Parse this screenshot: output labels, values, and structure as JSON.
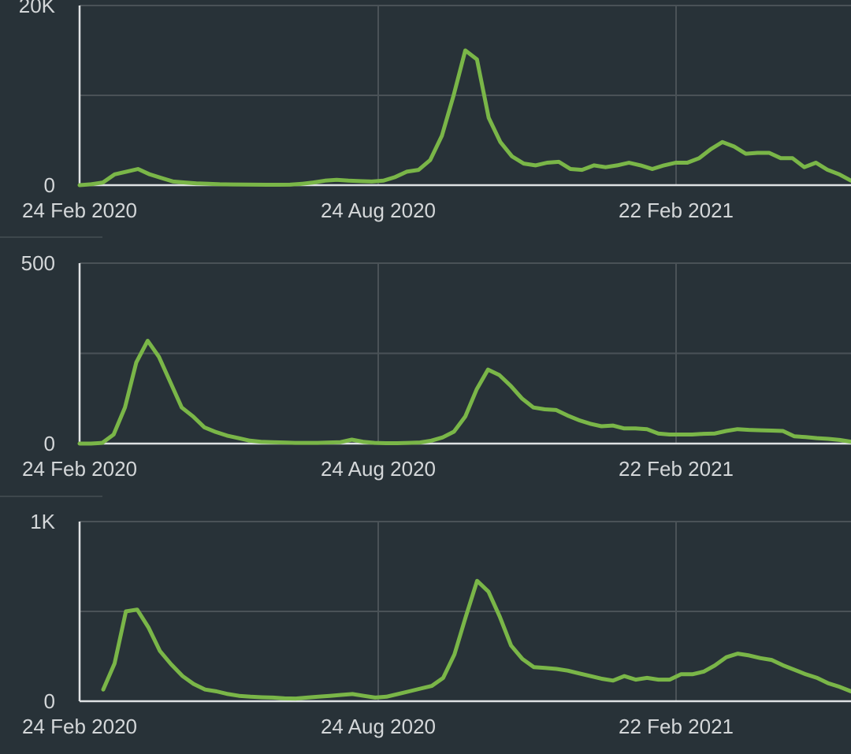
{
  "colors": {
    "background": "#283238",
    "line": "#7ab648",
    "grid": "#4a5257",
    "axis": "#dfe2e4",
    "text": "#d4d7d9"
  },
  "x_tick_labels": [
    "24 Feb 2020",
    "24 Aug 2020",
    "22 Feb 2021"
  ],
  "chart_data": [
    {
      "type": "line",
      "x_axis": "weekly, 24 Feb 2020 – late May 2021",
      "ylim": [
        0,
        20000
      ],
      "y_ticks": [
        {
          "value": 0,
          "label": "0"
        },
        {
          "value": 20000,
          "label": "20K"
        }
      ],
      "x_ticks": [
        "24 Feb 2020",
        "24 Aug 2020",
        "22 Feb 2021"
      ],
      "grid": true,
      "series": [
        {
          "values": [
            0,
            100,
            300,
            1200,
            1500,
            1800,
            1200,
            800,
            400,
            300,
            200,
            150,
            100,
            80,
            60,
            50,
            40,
            40,
            50,
            150,
            300,
            500,
            600,
            500,
            450,
            400,
            500,
            900,
            1500,
            1700,
            2800,
            5500,
            10000,
            15000,
            14000,
            7500,
            4800,
            3200,
            2400,
            2200,
            2500,
            2600,
            1800,
            1700,
            2200,
            2000,
            2200,
            2500,
            2200,
            1800,
            2200,
            2500,
            2500,
            3000,
            4000,
            4800,
            4300,
            3500,
            3600,
            3600,
            3000,
            3000,
            2000,
            2500,
            1700,
            1200,
            500
          ]
        }
      ]
    },
    {
      "type": "line",
      "x_axis": "weekly, 24 Feb 2020 – late May 2021",
      "ylim": [
        0,
        500
      ],
      "y_ticks": [
        {
          "value": 0,
          "label": "0"
        },
        {
          "value": 500,
          "label": "500"
        }
      ],
      "x_ticks": [
        "24 Feb 2020",
        "24 Aug 2020",
        "22 Feb 2021"
      ],
      "grid": true,
      "series": [
        {
          "values": [
            0,
            0,
            2,
            25,
            100,
            225,
            285,
            240,
            170,
            100,
            75,
            45,
            32,
            22,
            15,
            8,
            5,
            4,
            3,
            2,
            2,
            2,
            3,
            4,
            11,
            5,
            2,
            1,
            1,
            2,
            3,
            8,
            17,
            33,
            75,
            150,
            205,
            190,
            160,
            125,
            100,
            95,
            93,
            78,
            65,
            55,
            48,
            50,
            42,
            42,
            40,
            28,
            25,
            25,
            25,
            27,
            28,
            35,
            40,
            38,
            37,
            36,
            35,
            20,
            18,
            15,
            13,
            10,
            5
          ]
        }
      ]
    },
    {
      "type": "line",
      "x_axis": "weekly, 24 Feb 2020 – late May 2021",
      "ylim": [
        0,
        1000
      ],
      "y_ticks": [
        {
          "value": 0,
          "label": "0"
        },
        {
          "value": 1000,
          "label": "1K"
        }
      ],
      "x_ticks": [
        "24 Feb 2020",
        "24 Aug 2020",
        "22 Feb 2021"
      ],
      "grid": true,
      "series": [
        {
          "values": [
            65,
            210,
            500,
            510,
            410,
            280,
            205,
            140,
            95,
            65,
            55,
            40,
            30,
            25,
            22,
            20,
            16,
            15,
            20,
            25,
            30,
            35,
            40,
            30,
            20,
            25,
            40,
            55,
            70,
            85,
            130,
            260,
            470,
            670,
            610,
            470,
            310,
            235,
            190,
            185,
            180,
            170,
            155,
            140,
            125,
            115,
            140,
            120,
            130,
            120,
            120,
            150,
            150,
            165,
            200,
            245,
            265,
            255,
            240,
            230,
            200,
            175,
            150,
            130,
            100,
            80,
            55
          ]
        }
      ]
    }
  ]
}
